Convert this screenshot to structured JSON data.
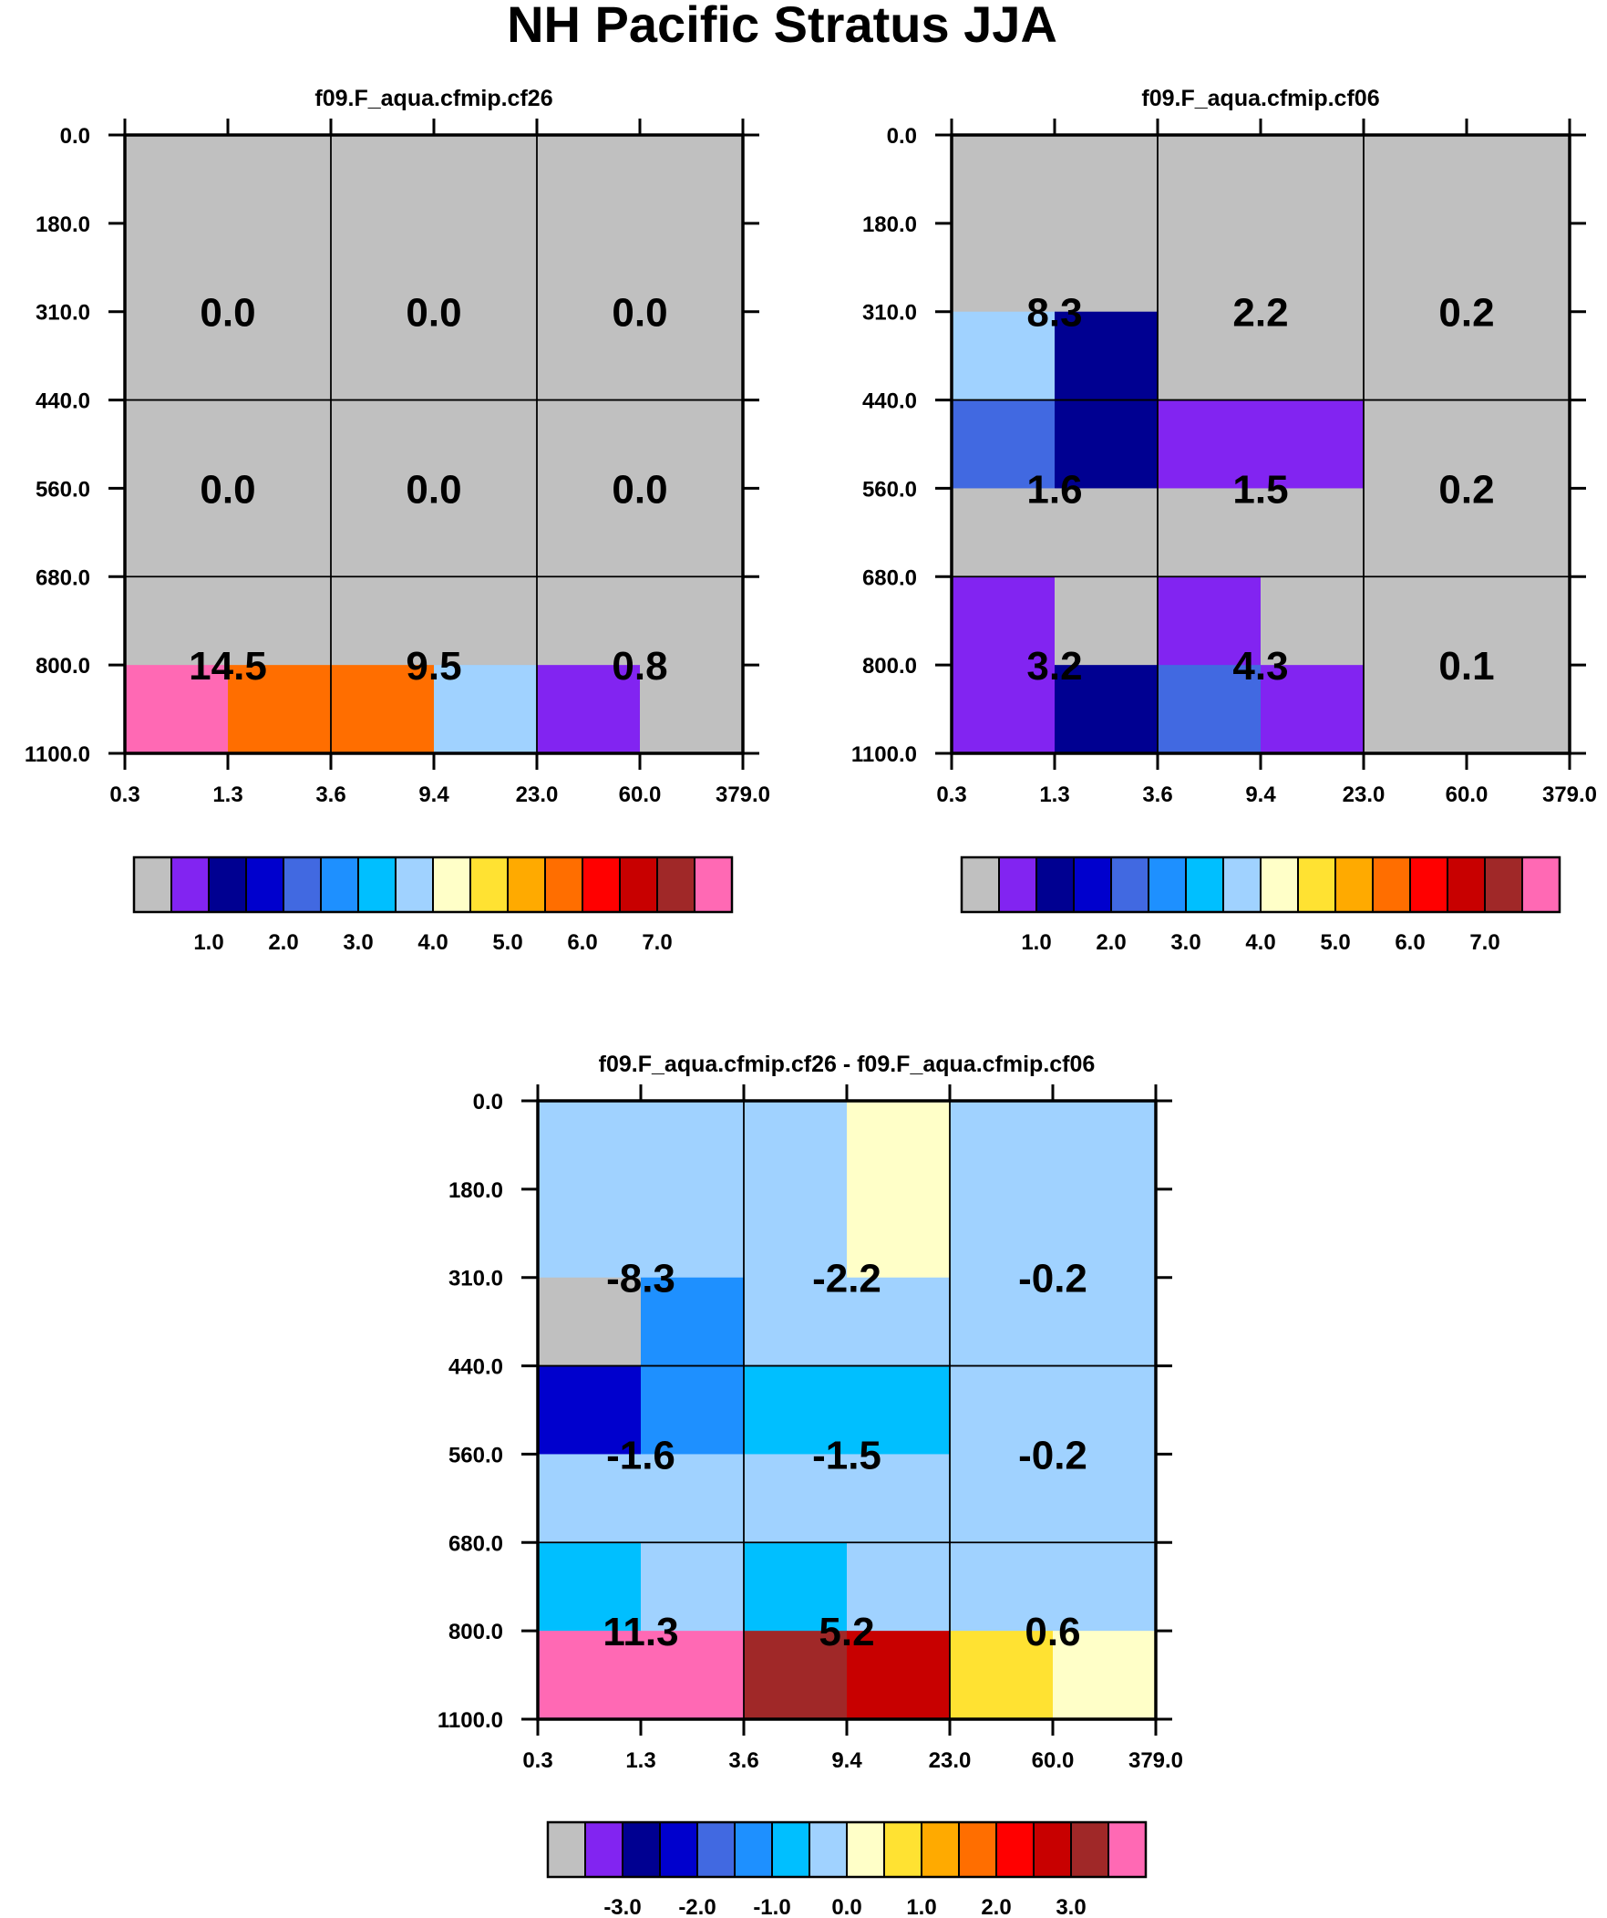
{
  "title": "NH Pacific Stratus JJA",
  "colors": {
    "background": "#ffffff",
    "frame": "#000000",
    "text": "#000000"
  },
  "palette": [
    "#c0c0c0",
    "#8224f1",
    "#000091",
    "#0000cd",
    "#4169e1",
    "#1e90ff",
    "#00bfff",
    "#a0d2ff",
    "#ffffc8",
    "#ffe232",
    "#ffaa00",
    "#ff6e00",
    "#ff0000",
    "#c80000",
    "#a02828",
    "#ff69b4"
  ],
  "chart_data": [
    {
      "type": "heatmap",
      "title": "f09.F_aqua.cfmip.cf26",
      "x_ticks": [
        "0.3",
        "1.3",
        "3.6",
        "9.4",
        "23.0",
        "60.0",
        "379.0"
      ],
      "y_ticks": [
        "0.0",
        "180.0",
        "310.0",
        "440.0",
        "560.0",
        "680.0",
        "800.0",
        "1100.0"
      ],
      "cells": [
        [
          0,
          0,
          0,
          0,
          0,
          0
        ],
        [
          0,
          0,
          0,
          0,
          0,
          0
        ],
        [
          0,
          0,
          0,
          0,
          0,
          0
        ],
        [
          0,
          0,
          0,
          0,
          0,
          0
        ],
        [
          0,
          0,
          0,
          0,
          0,
          0
        ],
        [
          15,
          11,
          11,
          7,
          1,
          0
        ]
      ],
      "box_labels": [
        [
          "0.0",
          "0.0",
          "0.0"
        ],
        [
          "0.0",
          "0.0",
          "0.0"
        ],
        [
          "14.5",
          "9.5",
          "0.8"
        ]
      ],
      "colorbar_labels": [
        "1.0",
        "2.0",
        "3.0",
        "4.0",
        "5.0",
        "6.0",
        "7.0"
      ]
    },
    {
      "type": "heatmap",
      "title": "f09.F_aqua.cfmip.cf06",
      "x_ticks": [
        "0.3",
        "1.3",
        "3.6",
        "9.4",
        "23.0",
        "60.0",
        "379.0"
      ],
      "y_ticks": [
        "0.0",
        "180.0",
        "310.0",
        "440.0",
        "560.0",
        "680.0",
        "800.0",
        "1100.0"
      ],
      "cells": [
        [
          0,
          0,
          0,
          0,
          0,
          0
        ],
        [
          7,
          2,
          0,
          0,
          0,
          0
        ],
        [
          4,
          2,
          1,
          1,
          0,
          0
        ],
        [
          0,
          0,
          0,
          0,
          0,
          0
        ],
        [
          1,
          0,
          1,
          0,
          0,
          0
        ],
        [
          1,
          2,
          4,
          1,
          0,
          0
        ]
      ],
      "box_labels": [
        [
          "8.3",
          "2.2",
          "0.2"
        ],
        [
          "1.6",
          "1.5",
          "0.2"
        ],
        [
          "3.2",
          "4.3",
          "0.1"
        ]
      ],
      "colorbar_labels": [
        "1.0",
        "2.0",
        "3.0",
        "4.0",
        "5.0",
        "6.0",
        "7.0"
      ]
    },
    {
      "type": "heatmap",
      "title": "f09.F_aqua.cfmip.cf26 - f09.F_aqua.cfmip.cf06",
      "x_ticks": [
        "0.3",
        "1.3",
        "3.6",
        "9.4",
        "23.0",
        "60.0",
        "379.0"
      ],
      "y_ticks": [
        "0.0",
        "180.0",
        "310.0",
        "440.0",
        "560.0",
        "680.0",
        "800.0",
        "1100.0"
      ],
      "cells": [
        [
          7,
          7,
          7,
          8,
          7,
          7
        ],
        [
          0,
          5,
          7,
          7,
          7,
          7
        ],
        [
          3,
          5,
          6,
          6,
          7,
          7
        ],
        [
          7,
          7,
          7,
          7,
          7,
          7
        ],
        [
          6,
          7,
          6,
          7,
          7,
          7
        ],
        [
          15,
          15,
          14,
          13,
          9,
          8
        ]
      ],
      "box_labels": [
        [
          "-8.3",
          "-2.2",
          "-0.2"
        ],
        [
          "-1.6",
          "-1.5",
          "-0.2"
        ],
        [
          "11.3",
          "5.2",
          "0.6"
        ]
      ],
      "colorbar_labels": [
        "-3.0",
        "-2.0",
        "-1.0",
        "0.0",
        "1.0",
        "2.0",
        "3.0"
      ]
    }
  ]
}
